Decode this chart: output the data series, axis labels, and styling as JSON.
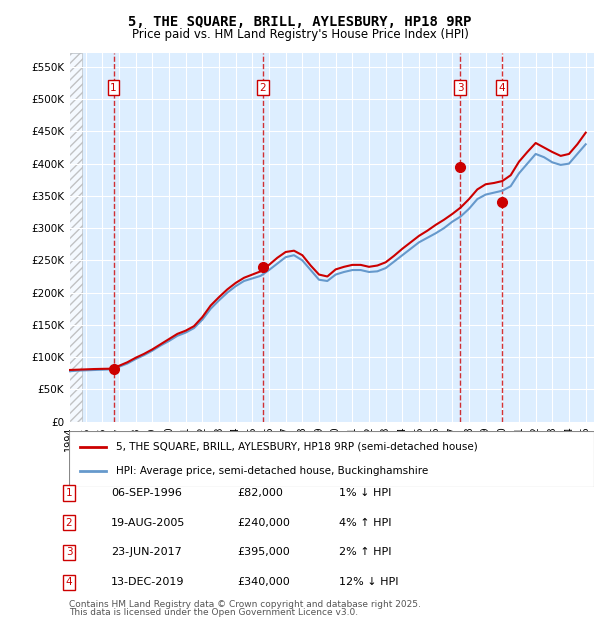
{
  "title": "5, THE SQUARE, BRILL, AYLESBURY, HP18 9RP",
  "subtitle": "Price paid vs. HM Land Registry's House Price Index (HPI)",
  "legend_line1": "5, THE SQUARE, BRILL, AYLESBURY, HP18 9RP (semi-detached house)",
  "legend_line2": "HPI: Average price, semi-detached house, Buckinghamshire",
  "footer_line1": "Contains HM Land Registry data © Crown copyright and database right 2025.",
  "footer_line2": "This data is licensed under the Open Government Licence v3.0.",
  "sale_color": "#cc0000",
  "hpi_color": "#6699cc",
  "background_plot": "#ddeeff",
  "hatch_region_color": "#cccccc",
  "yticks": [
    0,
    50000,
    100000,
    150000,
    200000,
    250000,
    300000,
    350000,
    400000,
    450000,
    500000,
    550000
  ],
  "ytick_labels": [
    "£0",
    "£50K",
    "£100K",
    "£150K",
    "£200K",
    "£250K",
    "£300K",
    "£350K",
    "£400K",
    "£450K",
    "£500K",
    "£550K"
  ],
  "xmin": 1994.0,
  "xmax": 2025.5,
  "ymin": 0,
  "ymax": 572000,
  "sales": [
    {
      "year": 1996.67,
      "price": 82000,
      "label": "1"
    },
    {
      "year": 2005.63,
      "price": 240000,
      "label": "2"
    },
    {
      "year": 2017.48,
      "price": 395000,
      "label": "3"
    },
    {
      "year": 2019.95,
      "price": 340000,
      "label": "4"
    }
  ],
  "sale_vlines": [
    1996.67,
    2005.63,
    2017.48,
    2019.95
  ],
  "table_rows": [
    {
      "num": "1",
      "date": "06-SEP-1996",
      "price": "£82,000",
      "hpi": "1% ↓ HPI"
    },
    {
      "num": "2",
      "date": "19-AUG-2005",
      "price": "£240,000",
      "hpi": "4% ↑ HPI"
    },
    {
      "num": "3",
      "date": "23-JUN-2017",
      "price": "£395,000",
      "hpi": "2% ↑ HPI"
    },
    {
      "num": "4",
      "date": "13-DEC-2019",
      "price": "£340,000",
      "hpi": "12% ↓ HPI"
    }
  ],
  "hpi_data": {
    "years": [
      1994.0,
      1994.5,
      1995.0,
      1995.5,
      1996.0,
      1996.5,
      1997.0,
      1997.5,
      1998.0,
      1998.5,
      1999.0,
      1999.5,
      2000.0,
      2000.5,
      2001.0,
      2001.5,
      2002.0,
      2002.5,
      2003.0,
      2003.5,
      2004.0,
      2004.5,
      2005.0,
      2005.5,
      2006.0,
      2006.5,
      2007.0,
      2007.5,
      2008.0,
      2008.5,
      2009.0,
      2009.5,
      2010.0,
      2010.5,
      2011.0,
      2011.5,
      2012.0,
      2012.5,
      2013.0,
      2013.5,
      2014.0,
      2014.5,
      2015.0,
      2015.5,
      2016.0,
      2016.5,
      2017.0,
      2017.5,
      2018.0,
      2018.5,
      2019.0,
      2019.5,
      2020.0,
      2020.5,
      2021.0,
      2021.5,
      2022.0,
      2022.5,
      2023.0,
      2023.5,
      2024.0,
      2024.5,
      2025.0
    ],
    "values": [
      78000,
      79000,
      79500,
      80000,
      80500,
      81000,
      85000,
      90000,
      97000,
      103000,
      110000,
      118000,
      125000,
      133000,
      138000,
      145000,
      158000,
      175000,
      188000,
      200000,
      210000,
      218000,
      222000,
      226000,
      235000,
      245000,
      255000,
      258000,
      250000,
      235000,
      220000,
      218000,
      228000,
      232000,
      235000,
      235000,
      232000,
      233000,
      238000,
      248000,
      258000,
      268000,
      278000,
      285000,
      292000,
      300000,
      310000,
      318000,
      330000,
      345000,
      352000,
      355000,
      358000,
      365000,
      385000,
      400000,
      415000,
      410000,
      402000,
      398000,
      400000,
      415000,
      430000
    ]
  },
  "sale_line_data": {
    "years": [
      1994.0,
      1994.5,
      1995.0,
      1995.5,
      1996.0,
      1996.5,
      1997.0,
      1997.5,
      1998.0,
      1998.5,
      1999.0,
      1999.5,
      2000.0,
      2000.5,
      2001.0,
      2001.5,
      2002.0,
      2002.5,
      2003.0,
      2003.5,
      2004.0,
      2004.5,
      2005.0,
      2005.5,
      2006.0,
      2006.5,
      2007.0,
      2007.5,
      2008.0,
      2008.5,
      2009.0,
      2009.5,
      2010.0,
      2010.5,
      2011.0,
      2011.5,
      2012.0,
      2012.5,
      2013.0,
      2013.5,
      2014.0,
      2014.5,
      2015.0,
      2015.5,
      2016.0,
      2016.5,
      2017.0,
      2017.5,
      2018.0,
      2018.5,
      2019.0,
      2019.5,
      2020.0,
      2020.5,
      2021.0,
      2021.5,
      2022.0,
      2022.5,
      2023.0,
      2023.5,
      2024.0,
      2024.5,
      2025.0
    ],
    "values": [
      80000,
      80500,
      81000,
      81500,
      81800,
      82000,
      86500,
      92000,
      99000,
      105000,
      112000,
      120000,
      128000,
      136000,
      141000,
      148000,
      162000,
      180000,
      193000,
      205000,
      215000,
      223000,
      228000,
      233000,
      243000,
      254000,
      263000,
      265000,
      258000,
      242000,
      228000,
      225000,
      236000,
      240000,
      243000,
      243000,
      240000,
      242000,
      247000,
      257000,
      268000,
      278000,
      288000,
      296000,
      305000,
      313000,
      322000,
      332000,
      345000,
      360000,
      368000,
      370000,
      373000,
      382000,
      403000,
      418000,
      432000,
      425000,
      418000,
      412000,
      415000,
      430000,
      448000
    ]
  }
}
